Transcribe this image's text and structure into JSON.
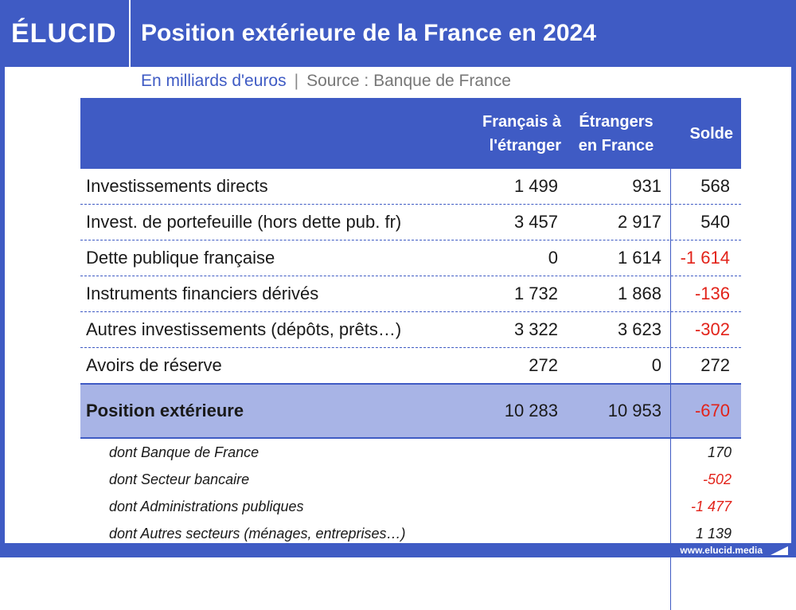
{
  "brand": {
    "logo": "ÉLUCID",
    "website": "www.elucid.media"
  },
  "title": "Position extérieure de la France en 2024",
  "subtitle": {
    "unit": "En milliards d'euros",
    "separator": "|",
    "source": "Source : Banque de France"
  },
  "colors": {
    "brand_blue": "#3f5bc4",
    "total_row": "#a8b4e6",
    "negative": "#e2231a"
  },
  "table": {
    "headers": {
      "francais_line1": "Français à",
      "francais_line2": "l'étranger",
      "etrangers_line1": "Étrangers",
      "etrangers_line2": "en France",
      "solde": "Solde"
    },
    "rows": [
      {
        "label": "Investissements directs",
        "francais": "1 499",
        "etrangers": "931",
        "solde": "568"
      },
      {
        "label": "Invest. de portefeuille (hors dette pub. fr)",
        "francais": "3 457",
        "etrangers": "2 917",
        "solde": "540"
      },
      {
        "label": "Dette publique française",
        "francais": "0",
        "etrangers": "1 614",
        "solde": "-1 614"
      },
      {
        "label": "Instruments financiers dérivés",
        "francais": "1 732",
        "etrangers": "1 868",
        "solde": "-136"
      },
      {
        "label": "Autres investissements (dépôts, prêts…)",
        "francais": "3 322",
        "etrangers": "3 623",
        "solde": "-302"
      },
      {
        "label": "Avoirs de réserve",
        "francais": "272",
        "etrangers": "0",
        "solde": "272"
      }
    ],
    "total": {
      "label": "Position extérieure",
      "francais": "10 283",
      "etrangers": "10 953",
      "solde": "-670"
    },
    "breakdown": [
      {
        "label": "dont Banque de France",
        "solde": "170"
      },
      {
        "label": "dont Secteur bancaire",
        "solde": "-502"
      },
      {
        "label": "dont Administrations publiques",
        "solde": "-1 477"
      },
      {
        "label": "dont Autres secteurs (ménages, entreprises…)",
        "solde": "1 139"
      }
    ]
  }
}
